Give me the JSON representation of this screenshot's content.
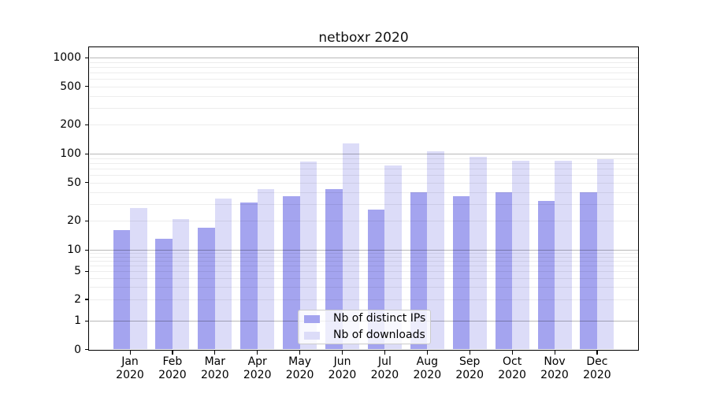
{
  "chart_data": {
    "type": "bar",
    "title": "netboxr 2020",
    "yscale": "symlog",
    "ylim": [
      0,
      1000
    ],
    "grid": "both (minor light, decade lines darker), drawn over bars",
    "legend_position": "lower center",
    "y_ticks": [
      {
        "value": 0,
        "label": "0"
      },
      {
        "value": 1,
        "label": "1"
      },
      {
        "value": 2,
        "label": "2"
      },
      {
        "value": 5,
        "label": "5"
      },
      {
        "value": 10,
        "label": "10"
      },
      {
        "value": 20,
        "label": "20"
      },
      {
        "value": 50,
        "label": "50"
      },
      {
        "value": 100,
        "label": "100"
      },
      {
        "value": 200,
        "label": "200"
      },
      {
        "value": 500,
        "label": "500"
      },
      {
        "value": 1000,
        "label": "1000"
      }
    ],
    "categories": [
      {
        "line1": "Jan",
        "line2": "2020"
      },
      {
        "line1": "Feb",
        "line2": "2020"
      },
      {
        "line1": "Mar",
        "line2": "2020"
      },
      {
        "line1": "Apr",
        "line2": "2020"
      },
      {
        "line1": "May",
        "line2": "2020"
      },
      {
        "line1": "Jun",
        "line2": "2020"
      },
      {
        "line1": "Jul",
        "line2": "2020"
      },
      {
        "line1": "Aug",
        "line2": "2020"
      },
      {
        "line1": "Sep",
        "line2": "2020"
      },
      {
        "line1": "Oct",
        "line2": "2020"
      },
      {
        "line1": "Nov",
        "line2": "2020"
      },
      {
        "line1": "Dec",
        "line2": "2020"
      }
    ],
    "series": [
      {
        "name": "Nb of distinct IPs",
        "slug": "distinct-ips",
        "color": "#a4a4ef",
        "values": [
          16,
          13,
          17,
          31,
          36,
          43,
          26,
          40,
          36,
          40,
          32,
          40
        ]
      },
      {
        "name": "Nb of downloads",
        "slug": "downloads",
        "color": "#dcdcf8",
        "values": [
          27,
          21,
          34,
          43,
          83,
          127,
          75,
          105,
          93,
          85,
          85,
          88
        ]
      }
    ]
  }
}
